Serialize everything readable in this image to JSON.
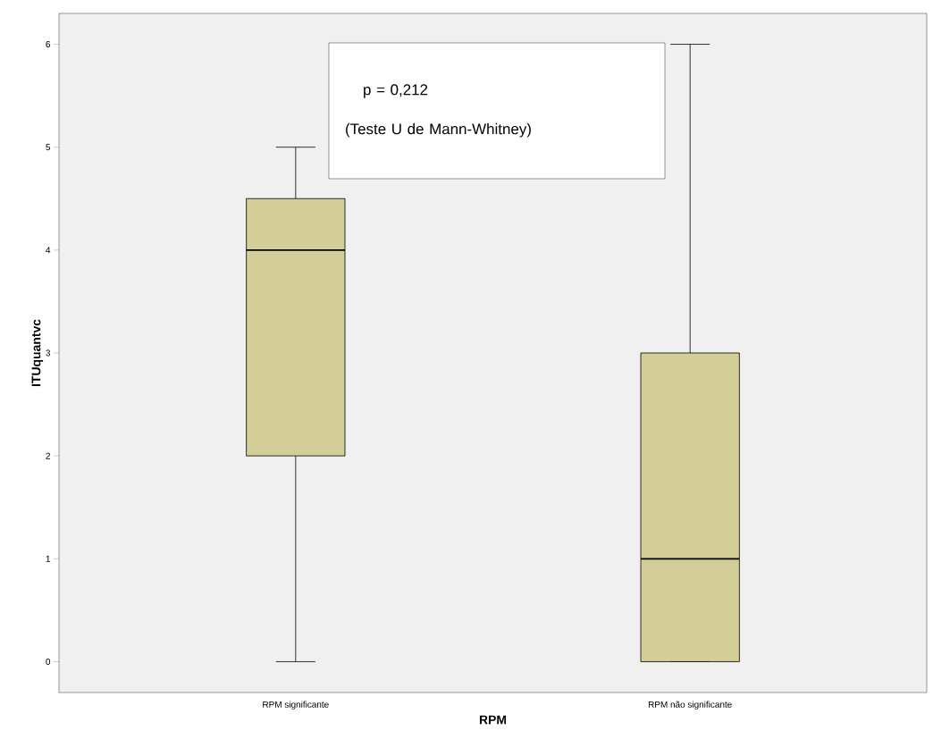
{
  "chart_data": {
    "type": "box",
    "xlabel": "RPM",
    "ylabel": "ITUquantvc",
    "categories": [
      "RPM significante",
      "RPM não significante"
    ],
    "boxes": [
      {
        "low": 0,
        "q1": 2,
        "median": 4,
        "q3": 4.5,
        "high": 5
      },
      {
        "low": 0,
        "q1": 0,
        "median": 1,
        "q3": 3,
        "high": 6
      }
    ],
    "color": "#d3ce97",
    "ylim": [
      -0.3,
      6.3
    ],
    "yticks": [
      0,
      1,
      2,
      3,
      4,
      5,
      6
    ],
    "grid": false,
    "annotations": [
      "p = 0,212",
      "(Teste U de Mann-Whitney)"
    ]
  }
}
